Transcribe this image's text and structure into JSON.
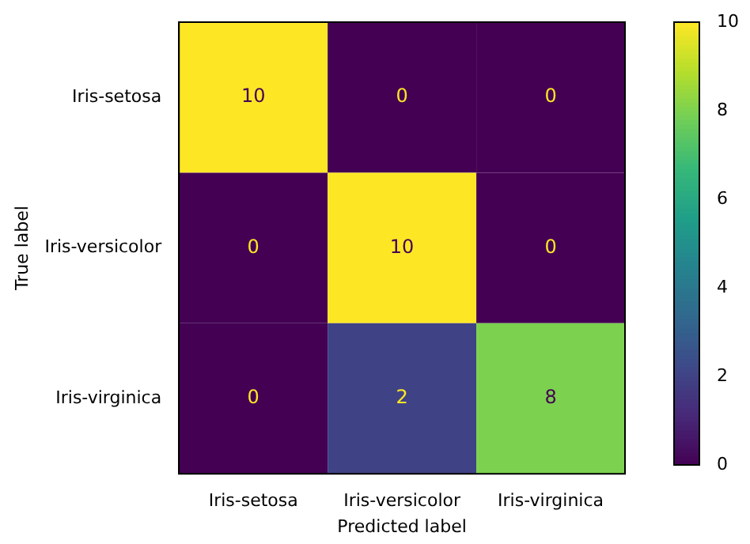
{
  "chart_data": {
    "type": "heatmap",
    "xlabel": "Predicted label",
    "ylabel": "True label",
    "categories": [
      "Iris-setosa",
      "Iris-versicolor",
      "Iris-virginica"
    ],
    "y_categories": [
      "Iris-setosa",
      "Iris-versicolor",
      "Iris-virginica"
    ],
    "cells": [
      [
        10,
        0,
        0
      ],
      [
        0,
        10,
        0
      ],
      [
        0,
        2,
        8
      ]
    ],
    "data_labels": true,
    "clim": [
      0,
      10
    ],
    "cticks": [
      0,
      2,
      4,
      6,
      8,
      10
    ]
  }
}
